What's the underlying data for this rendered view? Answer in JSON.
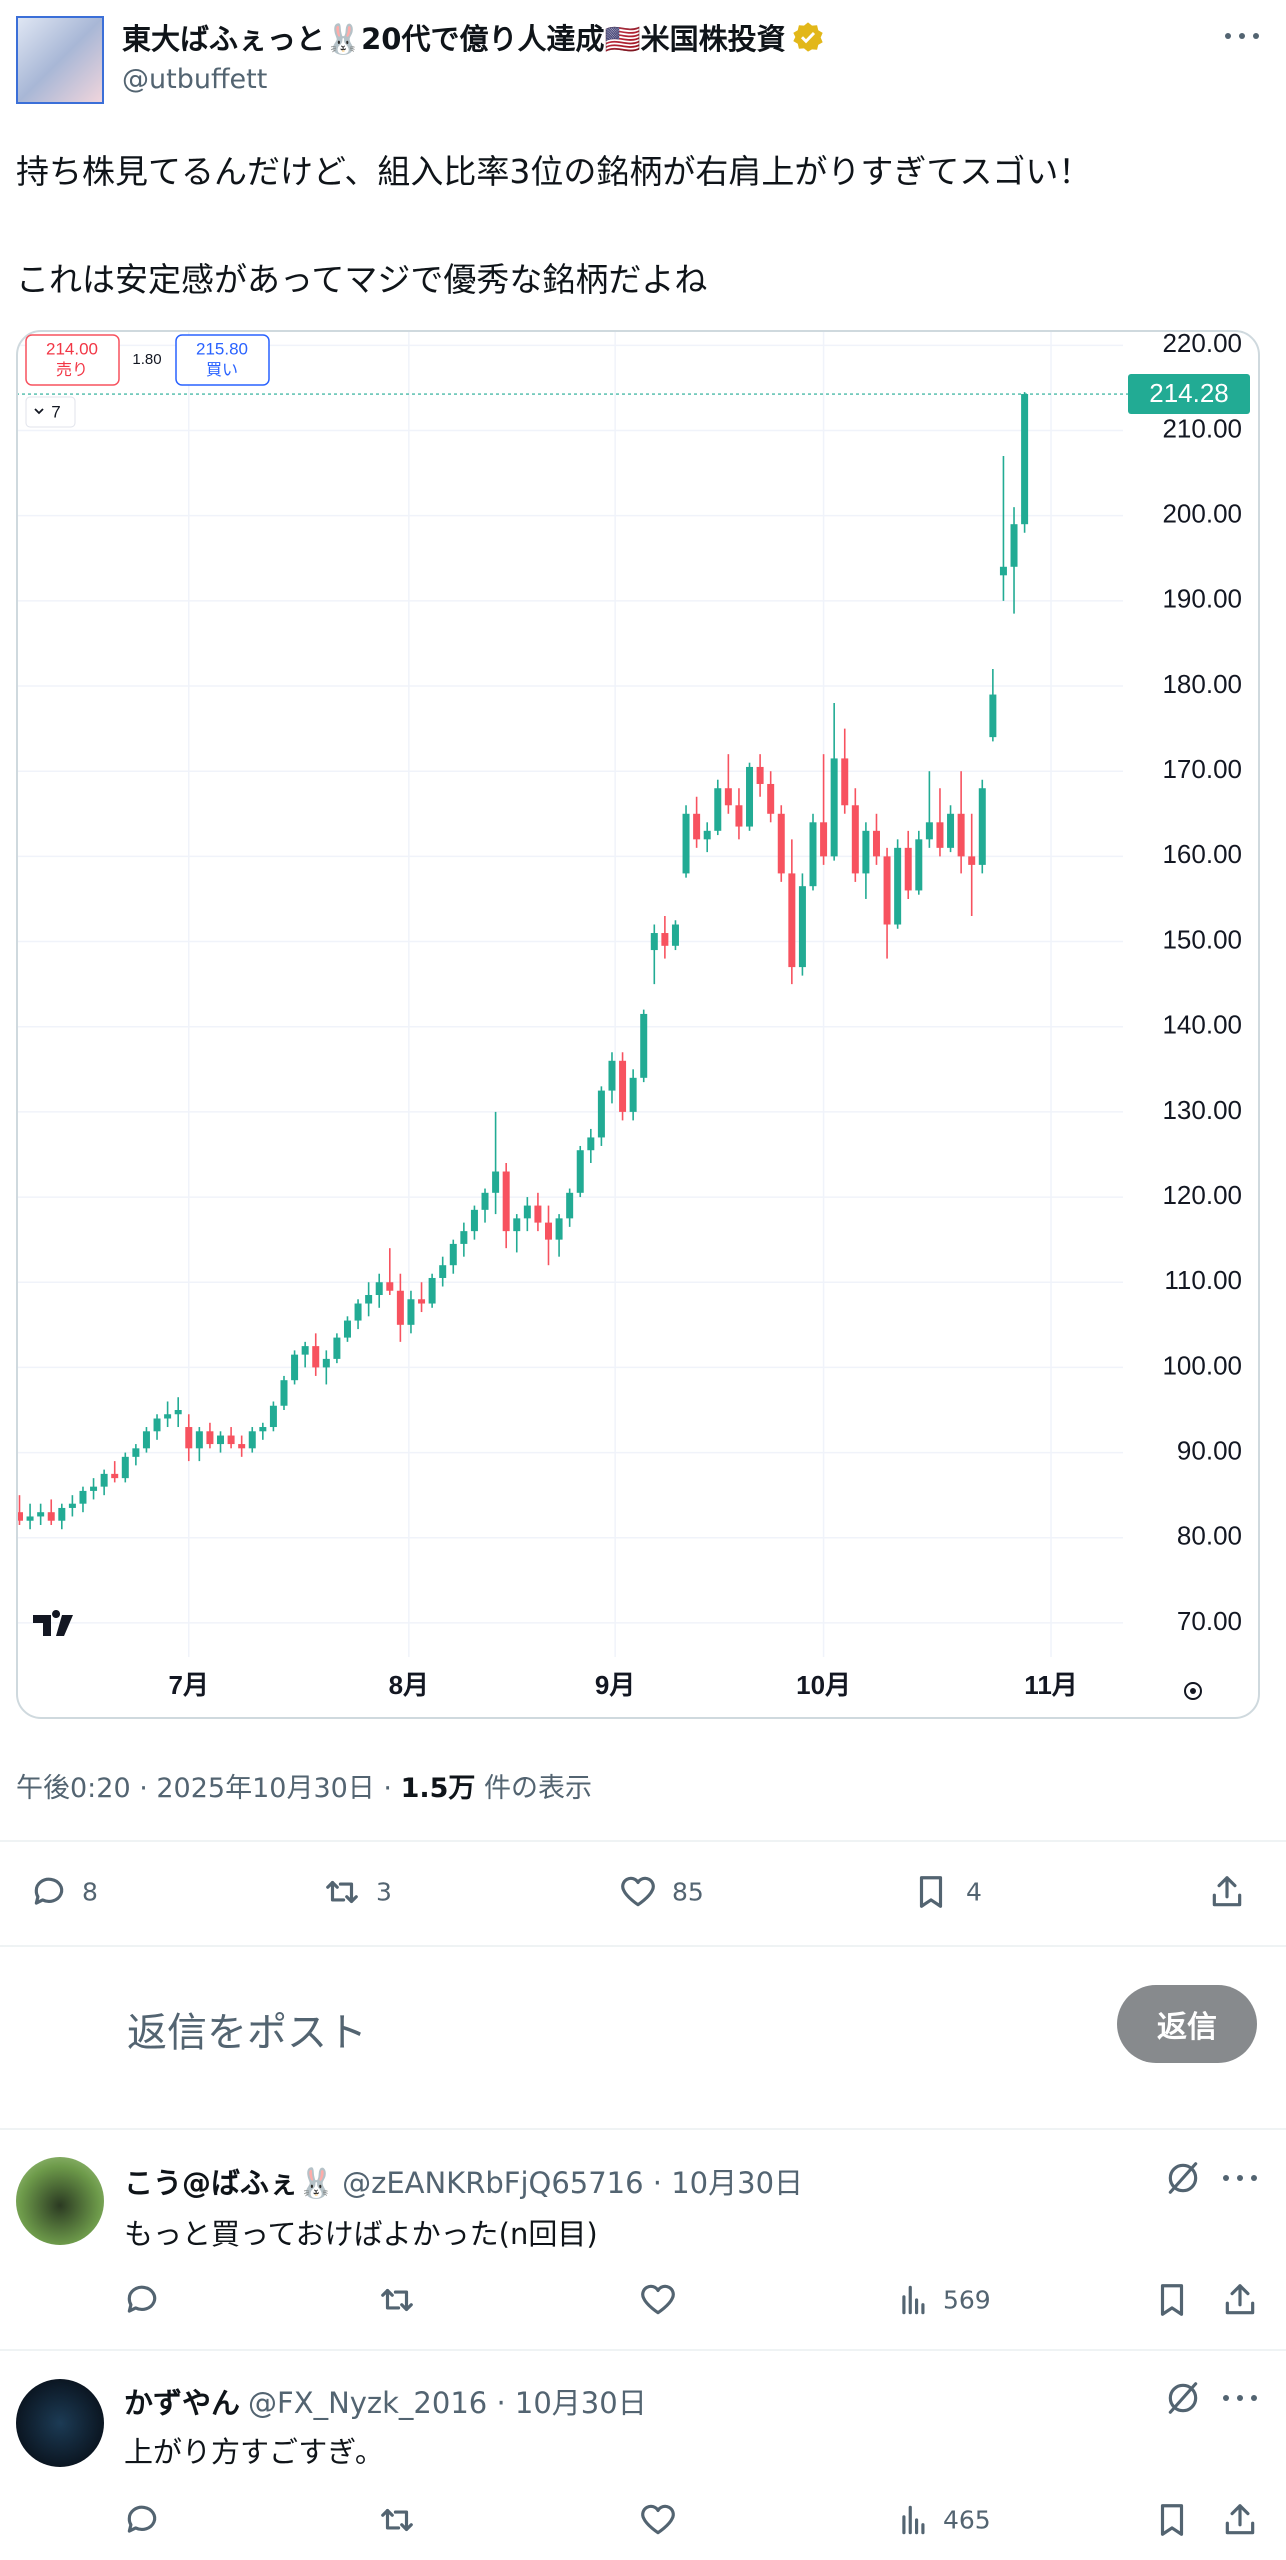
{
  "post": {
    "author_name": "東大ばふぇっと🐰20代で億り人達成🇺🇸米国株投資",
    "handle": "@utbuffett",
    "text_lines": [
      "持ち株見てるんだけど、組入比率3位の銘柄が右肩上がりすぎてスゴい！",
      "これは安定感があってマジで優秀な銘柄だよね"
    ],
    "timestamp": "午後0:20 · 2025年10月30日 ·",
    "views": "1.5万",
    "views_label": "件の表示",
    "stats": {
      "replies": 8,
      "reposts": 3,
      "likes": 85,
      "bookmarks": 4
    }
  },
  "reply_box": {
    "placeholder": "返信をポスト",
    "button": "返信"
  },
  "replies": [
    {
      "name": "こう@ばふぇ🐰",
      "handle": "@zEANKRbFjQ65716 · 10月30日",
      "text": "もっと買っておけばよかった(n回目)",
      "views": 569
    },
    {
      "name": "かずやん",
      "handle": "@FX_Nyzk_2016 · 10月30日",
      "text": "上がり方すごすぎ。",
      "views": 465
    }
  ],
  "chart_data": {
    "type": "candlestick",
    "up_color": "#22ab94",
    "down_color": "#f7525f",
    "grid": true,
    "order_panel": {
      "sell_price": "214.00",
      "sell_label": "売り",
      "spread": "1.80",
      "buy_price": "215.80",
      "buy_label": "買い",
      "indicators": "7"
    },
    "ylim": [
      66,
      221.8
    ],
    "yticks": [
      {
        "value": 70,
        "label": "70.00"
      },
      {
        "value": 80,
        "label": "80.00"
      },
      {
        "value": 90,
        "label": "90.00"
      },
      {
        "value": 100,
        "label": "100.00"
      },
      {
        "value": 110,
        "label": "110.00"
      },
      {
        "value": 120,
        "label": "120.00"
      },
      {
        "value": 130,
        "label": "130.00"
      },
      {
        "value": 140,
        "label": "140.00"
      },
      {
        "value": 150,
        "label": "150.00"
      },
      {
        "value": 160,
        "label": "160.00"
      },
      {
        "value": 170,
        "label": "170.00"
      },
      {
        "value": 180,
        "label": "180.00"
      },
      {
        "value": 190,
        "label": "190.00"
      },
      {
        "value": 200,
        "label": "200.00"
      },
      {
        "value": 210,
        "label": "210.00"
      },
      {
        "value": 220,
        "label": "220.00"
      }
    ],
    "xlim": [
      -0.33,
      104.3
    ],
    "xticks": [
      {
        "value": 16,
        "label": "7月"
      },
      {
        "value": 36.8,
        "label": "8月"
      },
      {
        "value": 56.3,
        "label": "9月"
      },
      {
        "value": 76,
        "label": "10月"
      },
      {
        "value": 97.5,
        "label": "11月"
      }
    ],
    "ohlc": [
      [
        83,
        85,
        81.5,
        82
      ],
      [
        82,
        84,
        81,
        82.5
      ],
      [
        82.5,
        84,
        81.5,
        83
      ],
      [
        83,
        84.5,
        81.5,
        82
      ],
      [
        82,
        84,
        81,
        83.5
      ],
      [
        83.5,
        85,
        82.5,
        84
      ],
      [
        84,
        86,
        83,
        85.5
      ],
      [
        85.5,
        87,
        84.5,
        86
      ],
      [
        86,
        88,
        85,
        87.5
      ],
      [
        87.5,
        89,
        86.5,
        87
      ],
      [
        87,
        90,
        86.5,
        89.5
      ],
      [
        89.5,
        91,
        88.5,
        90.5
      ],
      [
        90.5,
        93,
        90,
        92.5
      ],
      [
        92.5,
        94.5,
        91.5,
        94
      ],
      [
        94,
        96,
        93,
        94.5
      ],
      [
        94.5,
        96.5,
        93,
        95
      ],
      [
        93,
        94.5,
        89,
        90.5
      ],
      [
        90.5,
        93,
        89,
        92.5
      ],
      [
        92.5,
        93.5,
        90.5,
        91
      ],
      [
        91,
        92.5,
        90,
        92
      ],
      [
        92,
        93,
        90.5,
        91
      ],
      [
        91,
        92,
        89.5,
        90.5
      ],
      [
        90.5,
        93,
        90,
        92.5
      ],
      [
        92.5,
        93.5,
        91.5,
        93
      ],
      [
        93,
        96,
        92.5,
        95.5
      ],
      [
        95.5,
        99,
        95,
        98.5
      ],
      [
        98.5,
        102,
        98,
        101.5
      ],
      [
        101.5,
        103,
        100,
        102.5
      ],
      [
        102.5,
        104,
        99,
        100
      ],
      [
        100,
        102,
        98,
        101
      ],
      [
        101,
        104,
        100.5,
        103.5
      ],
      [
        103.5,
        106,
        103,
        105.5
      ],
      [
        105.5,
        108,
        104.5,
        107.5
      ],
      [
        107.5,
        110,
        106,
        108.5
      ],
      [
        108.5,
        111,
        107,
        110
      ],
      [
        110,
        114,
        108.5,
        109
      ],
      [
        109,
        111,
        103,
        105
      ],
      [
        105,
        109,
        104,
        108
      ],
      [
        108,
        110,
        106.5,
        107.5
      ],
      [
        107.5,
        111,
        107,
        110.5
      ],
      [
        110.5,
        113,
        109.5,
        112
      ],
      [
        112,
        115,
        111,
        114.5
      ],
      [
        114.5,
        117,
        113,
        116
      ],
      [
        116,
        119,
        115,
        118.5
      ],
      [
        118.5,
        121,
        117,
        120.5
      ],
      [
        120.5,
        130,
        118,
        123
      ],
      [
        123,
        124,
        114,
        116
      ],
      [
        116,
        118,
        113.5,
        117.5
      ],
      [
        117.5,
        120,
        116,
        119
      ],
      [
        119,
        120.5,
        116,
        117
      ],
      [
        117,
        119,
        112,
        115
      ],
      [
        115,
        118,
        113,
        117.5
      ],
      [
        117.5,
        121,
        116.5,
        120.5
      ],
      [
        120.5,
        126,
        120,
        125.5
      ],
      [
        125.5,
        128,
        124,
        127
      ],
      [
        127,
        133,
        126,
        132.5
      ],
      [
        132.5,
        137,
        131,
        136
      ],
      [
        136,
        137,
        129,
        130
      ],
      [
        130,
        135,
        129,
        134
      ],
      [
        134,
        142,
        133.5,
        141.5
      ],
      [
        149,
        152,
        145,
        151
      ],
      [
        151,
        153,
        148,
        149.5
      ],
      [
        149.5,
        152.5,
        149,
        152
      ],
      [
        158,
        166,
        157.5,
        165
      ],
      [
        165,
        167,
        161,
        162
      ],
      [
        162,
        164,
        160.5,
        163
      ],
      [
        163,
        169,
        162.5,
        168
      ],
      [
        168,
        172,
        165,
        166
      ],
      [
        166,
        168,
        162,
        163.5
      ],
      [
        163.5,
        171,
        163,
        170.5
      ],
      [
        170.5,
        172,
        167,
        168.5
      ],
      [
        168.5,
        170,
        164,
        165
      ],
      [
        165,
        166,
        157,
        158
      ],
      [
        158,
        162,
        145,
        147
      ],
      [
        147,
        158,
        146,
        156.5
      ],
      [
        156.5,
        165,
        156,
        164
      ],
      [
        164,
        172,
        159,
        160
      ],
      [
        160,
        178,
        159.5,
        171.5
      ],
      [
        171.5,
        175,
        165,
        166
      ],
      [
        166,
        168,
        157,
        158
      ],
      [
        158,
        164,
        155,
        163
      ],
      [
        163,
        165,
        159,
        160
      ],
      [
        160,
        161,
        148,
        152
      ],
      [
        152,
        162,
        151.5,
        161
      ],
      [
        161,
        163,
        155,
        156
      ],
      [
        156,
        163,
        155.5,
        162
      ],
      [
        162,
        170,
        161,
        164
      ],
      [
        164,
        168,
        160,
        161
      ],
      [
        161,
        166,
        160.5,
        165
      ],
      [
        165,
        170,
        158,
        160
      ],
      [
        160,
        165,
        153,
        159
      ],
      [
        159,
        169,
        158,
        168
      ],
      [
        174,
        182,
        173.5,
        179
      ],
      [
        193,
        207,
        190,
        194
      ],
      [
        194,
        201,
        188.5,
        199
      ],
      [
        199,
        214.5,
        198,
        214.28
      ]
    ]
  }
}
